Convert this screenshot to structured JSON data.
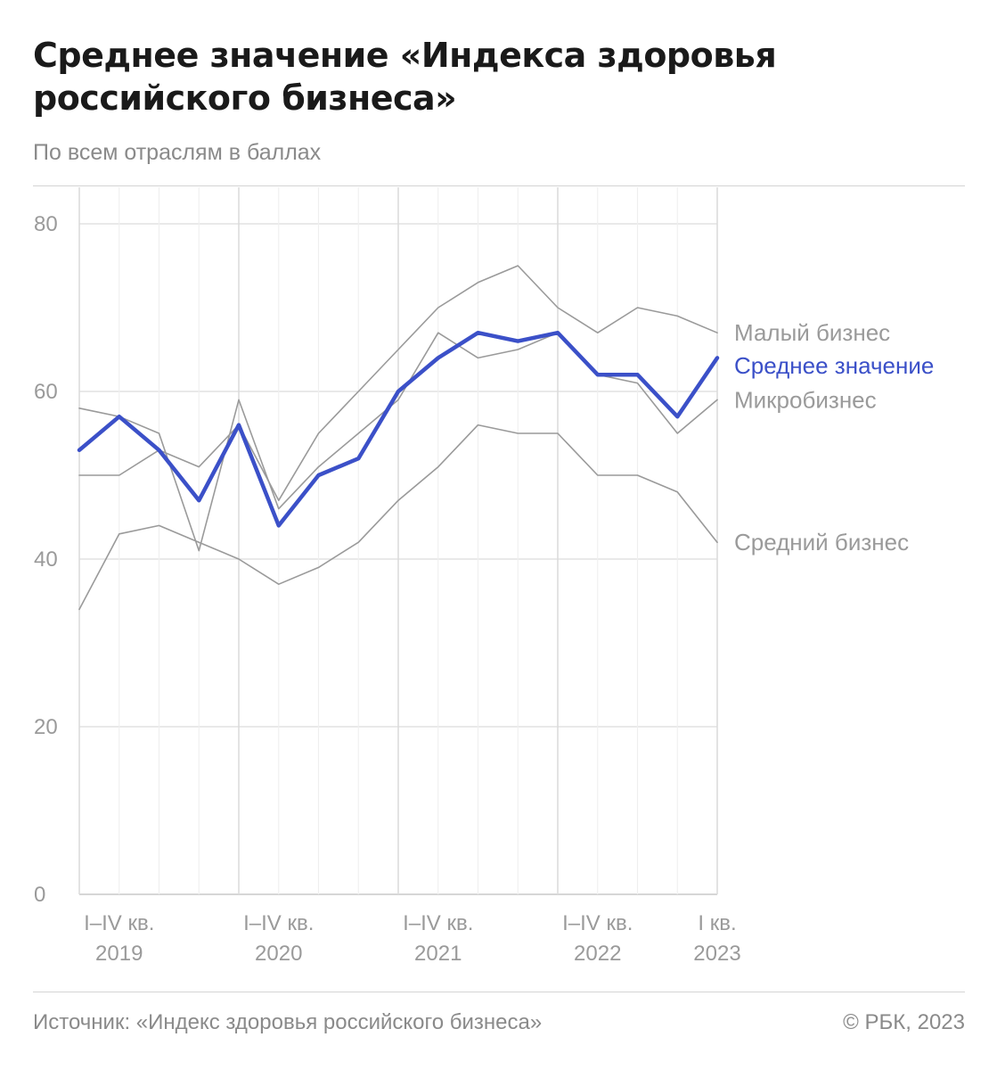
{
  "title": "Среднее значение «Индекса здоровья российского бизнеса»",
  "subtitle": "По всем отраслям в баллах",
  "source": "Источник: «Индекс здоровья российского бизнеса»",
  "copyright": "© РБК, 2023",
  "colors": {
    "highlight": "#3b50c8",
    "series": "#9a9a9a",
    "grid": "#e2e2e2",
    "axis": "#9a9a9a"
  },
  "chart_data": {
    "type": "line",
    "ylim": [
      0,
      80
    ],
    "yticks": [
      0,
      20,
      40,
      60,
      80
    ],
    "grid": true,
    "legend": "direct labels at right end of lines",
    "x_period_labels": [
      {
        "index": 1,
        "period": "I–IV кв.",
        "year": "2019"
      },
      {
        "index": 5,
        "period": "I–IV кв.",
        "year": "2020"
      },
      {
        "index": 9,
        "period": "I–IV кв.",
        "year": "2021"
      },
      {
        "index": 13,
        "period": "I–IV кв.",
        "year": "2022"
      },
      {
        "index": 16,
        "period": "I кв.",
        "year": "2023"
      }
    ],
    "series": [
      {
        "name": "Малый бизнес",
        "highlight": false,
        "values": [
          50,
          50,
          53,
          51,
          56,
          47,
          55,
          60,
          65,
          70,
          73,
          75,
          70,
          67,
          70,
          69,
          67
        ]
      },
      {
        "name": "Среднее значение",
        "highlight": true,
        "values": [
          53,
          57,
          53,
          47,
          56,
          44,
          50,
          52,
          60,
          64,
          67,
          66,
          67,
          62,
          62,
          57,
          64
        ]
      },
      {
        "name": "Микробизнес",
        "highlight": false,
        "values": [
          58,
          57,
          55,
          41,
          59,
          46,
          51,
          55,
          59,
          67,
          64,
          65,
          67,
          62,
          61,
          55,
          59
        ]
      },
      {
        "name": "Средний бизнес",
        "highlight": false,
        "values": [
          34,
          43,
          44,
          42,
          40,
          37,
          39,
          42,
          47,
          51,
          56,
          55,
          55,
          50,
          50,
          48,
          42
        ]
      }
    ]
  }
}
